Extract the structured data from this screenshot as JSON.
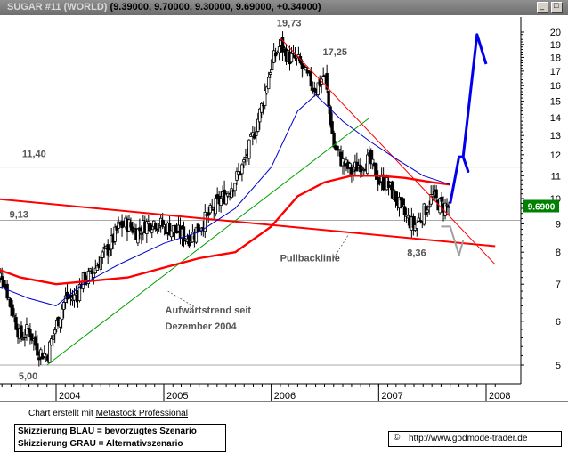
{
  "window": {
    "symbol": "SUGAR #11 (WORLD)",
    "quote": "(9.39000, 9.70000, 9.30000, 9.69000, +0.34000)"
  },
  "chart_data": {
    "type": "candlestick",
    "instrument": "SUGAR #11 (WORLD)",
    "y_scale": "log",
    "ylim": [
      4.5,
      21
    ],
    "y_ticks": [
      5,
      6,
      7,
      8,
      9,
      10,
      11,
      12,
      13,
      14,
      15,
      16,
      17,
      18,
      19,
      20
    ],
    "x_ticks": [
      "2004",
      "2005",
      "2006",
      "2007",
      "2008"
    ],
    "last_price_label": "9.6900",
    "price_path": [
      [
        "2003-06-01",
        7.0
      ],
      [
        "2003-07-01",
        7.3
      ],
      [
        "2003-08-01",
        6.4
      ],
      [
        "2003-09-01",
        5.6
      ],
      [
        "2003-10-01",
        5.8
      ],
      [
        "2003-11-01",
        5.3
      ],
      [
        "2003-12-01",
        5.2
      ],
      [
        "2004-01-01",
        5.9
      ],
      [
        "2004-02-01",
        6.6
      ],
      [
        "2004-03-01",
        6.6
      ],
      [
        "2004-04-01",
        7.1
      ],
      [
        "2004-05-01",
        7.3
      ],
      [
        "2004-06-01",
        7.8
      ],
      [
        "2004-07-01",
        8.2
      ],
      [
        "2004-08-01",
        8.9
      ],
      [
        "2004-09-01",
        9.0
      ],
      [
        "2004-10-01",
        8.7
      ],
      [
        "2004-11-01",
        9.0
      ],
      [
        "2004-12-01",
        9.1
      ],
      [
        "2005-01-01",
        8.9
      ],
      [
        "2005-02-01",
        8.8
      ],
      [
        "2005-03-01",
        8.6
      ],
      [
        "2005-04-01",
        8.5
      ],
      [
        "2005-05-01",
        8.9
      ],
      [
        "2005-06-01",
        9.3
      ],
      [
        "2005-07-01",
        9.8
      ],
      [
        "2005-08-01",
        10.2
      ],
      [
        "2005-09-01",
        10.8
      ],
      [
        "2005-10-01",
        11.6
      ],
      [
        "2005-11-01",
        13.0
      ],
      [
        "2005-12-01",
        14.8
      ],
      [
        "2006-01-01",
        17.5
      ],
      [
        "2006-02-01",
        19.0
      ],
      [
        "2006-03-01",
        18.0
      ],
      [
        "2006-04-01",
        17.8
      ],
      [
        "2006-05-01",
        16.6
      ],
      [
        "2006-06-01",
        15.8
      ],
      [
        "2006-07-01",
        16.8
      ],
      [
        "2006-08-01",
        12.5
      ],
      [
        "2006-09-01",
        11.6
      ],
      [
        "2006-10-01",
        11.2
      ],
      [
        "2006-11-01",
        11.6
      ],
      [
        "2006-12-01",
        11.7
      ],
      [
        "2007-01-01",
        10.8
      ],
      [
        "2007-02-01",
        10.6
      ],
      [
        "2007-03-01",
        10.0
      ],
      [
        "2007-04-01",
        9.3
      ],
      [
        "2007-05-01",
        8.9
      ],
      [
        "2007-06-01",
        9.4
      ],
      [
        "2007-07-01",
        10.1
      ],
      [
        "2007-08-01",
        9.7
      ],
      [
        "2007-09-01",
        9.69
      ]
    ],
    "moving_averages": [
      {
        "color": "#ff0000",
        "points": [
          [
            "2003-06-01",
            7.5
          ],
          [
            "2003-09-01",
            7.2
          ],
          [
            "2004-01-01",
            7.0
          ],
          [
            "2004-05-01",
            7.1
          ],
          [
            "2004-09-01",
            7.2
          ],
          [
            "2005-01-01",
            7.5
          ],
          [
            "2005-05-01",
            7.8
          ],
          [
            "2005-09-01",
            8.0
          ],
          [
            "2006-01-01",
            8.9
          ],
          [
            "2006-04-01",
            10.1
          ],
          [
            "2006-07-01",
            10.7
          ],
          [
            "2006-10-01",
            11.0
          ],
          [
            "2007-01-01",
            11.0
          ],
          [
            "2007-04-01",
            10.9
          ],
          [
            "2007-07-01",
            10.7
          ],
          [
            "2007-09-01",
            10.6
          ]
        ]
      },
      {
        "color": "#0000cc",
        "points": [
          [
            "2003-06-01",
            7.0
          ],
          [
            "2003-10-01",
            6.6
          ],
          [
            "2004-01-01",
            6.4
          ],
          [
            "2004-04-01",
            7.0
          ],
          [
            "2004-08-01",
            7.6
          ],
          [
            "2005-01-01",
            8.3
          ],
          [
            "2005-05-01",
            8.7
          ],
          [
            "2005-09-01",
            9.6
          ],
          [
            "2006-01-01",
            11.4
          ],
          [
            "2006-04-01",
            14.4
          ],
          [
            "2006-06-01",
            15.4
          ],
          [
            "2006-09-01",
            13.8
          ],
          [
            "2006-12-01",
            12.7
          ],
          [
            "2007-03-01",
            11.8
          ],
          [
            "2007-06-01",
            11.0
          ],
          [
            "2007-09-01",
            10.6
          ]
        ]
      }
    ],
    "trendlines": [
      {
        "color": "#00a000",
        "from": [
          "2003-12-01",
          5.0
        ],
        "to": [
          "2006-12-01",
          14.0
        ]
      },
      {
        "color": "#ff0000",
        "from": [
          "2006-02-01",
          19.5
        ],
        "to": [
          "2008-02-01",
          7.6
        ]
      },
      {
        "color": "#ff0000",
        "from": [
          "2003-06-01",
          10.0
        ],
        "to": [
          "2008-02-01",
          8.2
        ]
      }
    ],
    "horizontal_levels": [
      5.0,
      9.13,
      11.4
    ],
    "scenarios": {
      "blue": [
        [
          "2007-09-01",
          9.8
        ],
        [
          "2007-10-01",
          11.9
        ],
        [
          "2007-10-15",
          11.9
        ],
        [
          "2007-11-01",
          11.2
        ],
        [
          "2007-10-15",
          11.9
        ],
        [
          "2007-12-01",
          19.8
        ],
        [
          "2008-01-01",
          17.5
        ]
      ],
      "gray": [
        [
          "2007-08-01",
          8.9
        ],
        [
          "2007-09-01",
          8.9
        ],
        [
          "2007-10-01",
          7.9
        ],
        [
          "2007-10-15",
          8.4
        ]
      ]
    },
    "annotations": [
      {
        "text": "19,73",
        "date": "2006-02-01",
        "value": 19.73
      },
      {
        "text": "17,25",
        "date": "2006-07-01",
        "value": 17.25
      },
      {
        "text": "11,40",
        "date": "2003-11-01",
        "value": 11.4
      },
      {
        "text": "9,13",
        "date": "2003-10-01",
        "value": 9.13
      },
      {
        "text": "8,36",
        "date": "2007-06-01",
        "value": 8.36
      },
      {
        "text": "5,00",
        "date": "2003-11-01",
        "value": 5.0
      },
      {
        "text": "Pullbacklinie",
        "date": "2006-06-01",
        "value": 7.7
      },
      {
        "text": "Aufwärtstrend seit",
        "date": "2005-03-01",
        "value": 6.2
      },
      {
        "text": "Dezember 2004",
        "date": "2005-03-01",
        "value": 5.8
      }
    ]
  },
  "footer": {
    "credit_prefix": "Chart erstellt mit ",
    "credit_link": "Metastock Professional",
    "legend_blue": "Skizzierung BLAU = bevorzugtes Szenario",
    "legend_gray": "Skizzierung GRAU = Alternativszenario",
    "copyright_symbol": "©",
    "url": "http://www.godmode-trader.de"
  },
  "colors": {
    "titlebar": "#7a7a7a",
    "candle": "#000000",
    "ma_red": "#ff0000",
    "ma_blue": "#0000cc",
    "trend_green": "#00a000",
    "scenario_blue": "#0000ee",
    "scenario_gray": "#a0a0a0",
    "level_gray": "#a8a8a8",
    "last_price_bg": "#008000"
  }
}
